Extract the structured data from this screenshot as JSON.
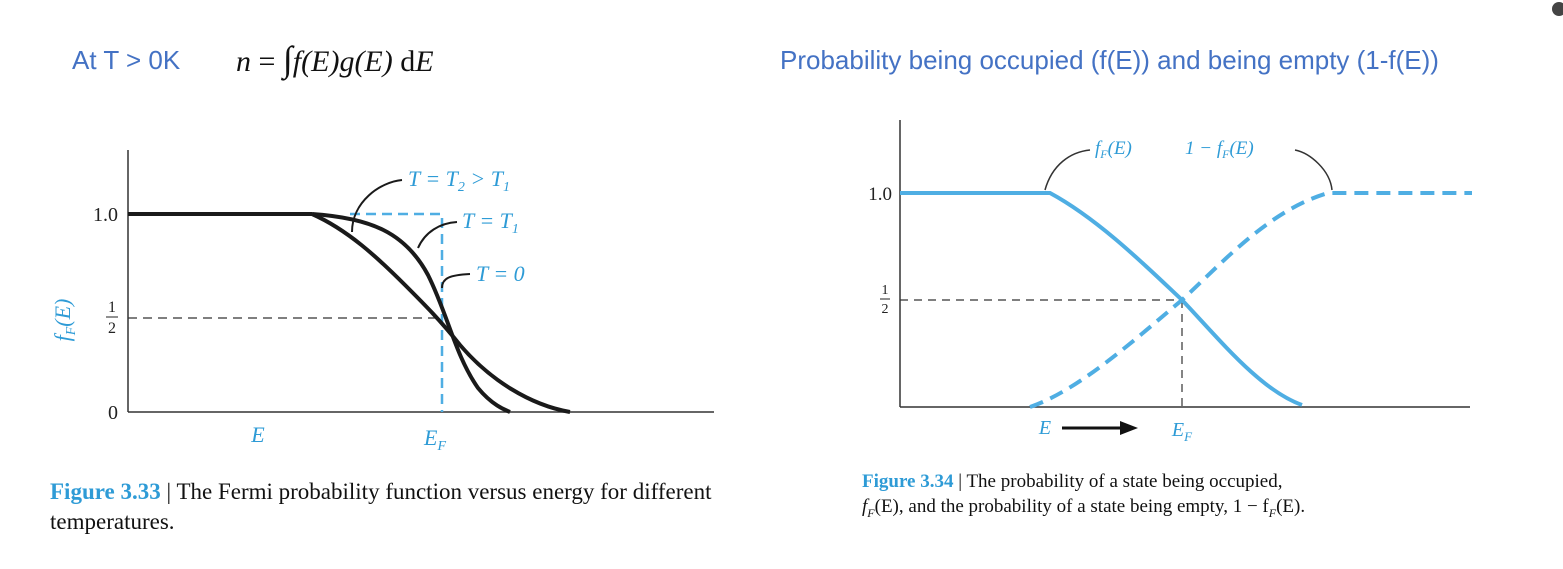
{
  "header_left": "At T > 0K",
  "equation": {
    "lhs": "n",
    "eq": "=",
    "integral": "∫",
    "f": "f(E)",
    "g": "g",
    "g_arg": "(E)",
    "d": "d",
    "var": "E"
  },
  "header_right": "Probability being occupied (f(E)) and being empty (1-f(E))",
  "figure_333": {
    "ylabel": "f",
    "ylabel_sub": "F",
    "ylabel_tail": "(E)",
    "y_tick_1": "1.0",
    "y_tick_half_num": "1",
    "y_tick_half_den": "2",
    "y_tick_0": "0",
    "x_label_e": "E",
    "x_label_ef": "E",
    "x_label_ef_sub": "F",
    "label_t2": "T = T",
    "label_t2_sub": "2",
    "label_t2_gt": " > T",
    "label_t2_sub2": "1",
    "label_t1": "T = T",
    "label_t1_sub": "1",
    "label_t0": "T = 0",
    "caption_label": "Figure 3.33",
    "caption_sep": " | ",
    "caption_text": "The Fermi probability function versus energy for different temperatures."
  },
  "figure_334": {
    "y_tick_1": "1.0",
    "y_tick_half_num": "1",
    "y_tick_half_den": "2",
    "x_label_e": "E",
    "x_label_ef": "E",
    "x_label_ef_sub": "F",
    "label_f": "f",
    "label_f_sub": "F",
    "label_f_tail": "(E)",
    "label_1mf": "1 − f",
    "label_1mf_sub": "F",
    "label_1mf_tail": "(E)",
    "caption_label": "Figure 3.34",
    "caption_sep": " | ",
    "caption_line1": "The probability of a state being occupied,",
    "caption_line2_f": "f",
    "caption_line2_sub": "F",
    "caption_line2_mid": "(E), and the probability of a state being empty, 1 − f",
    "caption_line2_sub2": "F",
    "caption_line2_end": "(E)."
  },
  "colors": {
    "accent_blue": "#4472C4",
    "curve_blue": "#4FAEE3",
    "caption_blue": "#2E9BD6",
    "curve_black": "#1a1a1a"
  }
}
